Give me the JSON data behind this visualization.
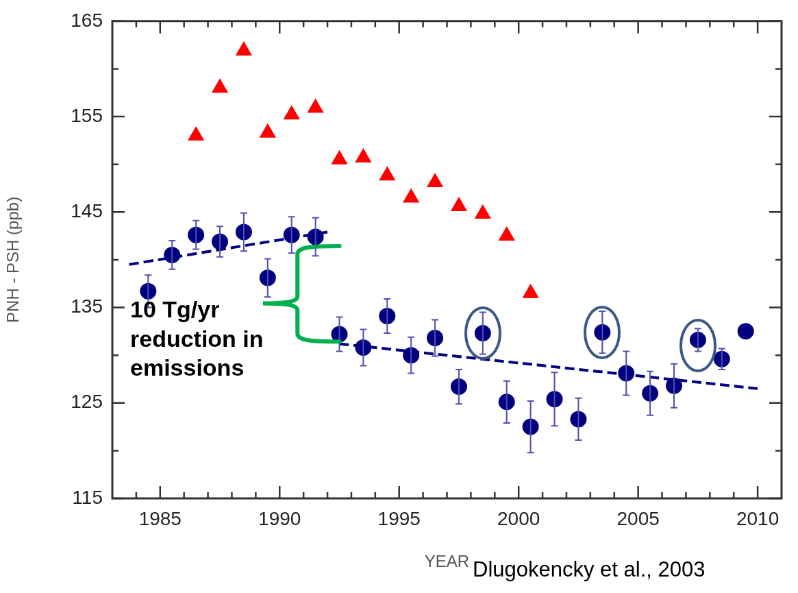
{
  "chart_data": {
    "type": "scatter",
    "xlabel": "YEAR",
    "ylabel": "PNH - PSH (ppb)",
    "xlim": [
      1983,
      2011
    ],
    "ylim": [
      115,
      165
    ],
    "xticks": [
      {
        "value": 1984,
        "label": null
      },
      1985,
      {
        "value": 1986,
        "label": null
      },
      {
        "value": 1987,
        "label": null
      },
      {
        "value": 1988,
        "label": null
      },
      {
        "value": 1989,
        "label": null
      },
      1990,
      {
        "value": 1991,
        "label": null
      },
      {
        "value": 1992,
        "label": null
      },
      {
        "value": 1993,
        "label": null
      },
      {
        "value": 1994,
        "label": null
      },
      1995,
      {
        "value": 1996,
        "label": null
      },
      {
        "value": 1997,
        "label": null
      },
      {
        "value": 1998,
        "label": null
      },
      {
        "value": 1999,
        "label": null
      },
      2000,
      {
        "value": 2001,
        "label": null
      },
      {
        "value": 2002,
        "label": null
      },
      {
        "value": 2003,
        "label": null
      },
      {
        "value": 2004,
        "label": null
      },
      2005,
      {
        "value": 2006,
        "label": null
      },
      {
        "value": 2007,
        "label": null
      },
      {
        "value": 2008,
        "label": null
      },
      {
        "value": 2009,
        "label": null
      },
      2010
    ],
    "yticks": [
      115,
      {
        "value": 120,
        "label": null
      },
      125,
      {
        "value": 130,
        "label": null
      },
      135,
      {
        "value": 140,
        "label": null
      },
      145,
      {
        "value": 150,
        "label": null
      },
      155,
      {
        "value": 160,
        "label": null
      },
      165
    ],
    "grid": false,
    "legend": false,
    "series": [
      {
        "marker": "triangle",
        "color": "#ff0000",
        "x": [
          1986.5,
          1987.5,
          1988.5,
          1989.5,
          1990.5,
          1991.5,
          1992.5,
          1993.5,
          1994.5,
          1995.5,
          1996.5,
          1997.5,
          1998.5,
          1999.5,
          2000.5
        ],
        "values": [
          153.0,
          158.0,
          161.9,
          153.3,
          155.2,
          155.9,
          150.5,
          150.7,
          148.8,
          146.5,
          148.1,
          145.6,
          144.8,
          142.5,
          136.5
        ]
      },
      {
        "marker": "circle",
        "color": "#000080",
        "x": [
          1984.5,
          1985.5,
          1986.5,
          1987.5,
          1988.5,
          1989.5,
          1990.5,
          1991.5,
          1992.5,
          1993.5,
          1994.5,
          1995.5,
          1996.5,
          1997.5,
          1998.5,
          1999.5,
          2000.5,
          2001.5,
          2002.5,
          2003.5,
          2004.5,
          2005.5,
          2006.5,
          2007.5,
          2008.5,
          2009.5
        ],
        "values": [
          136.7,
          140.5,
          142.6,
          141.9,
          142.9,
          138.1,
          142.6,
          142.4,
          132.2,
          130.8,
          134.1,
          130.0,
          131.8,
          126.7,
          132.3,
          125.1,
          122.5,
          125.4,
          123.3,
          132.4,
          128.1,
          126.0,
          126.8,
          131.6,
          129.6,
          132.5
        ],
        "errors": [
          1.7,
          1.5,
          1.5,
          1.6,
          2,
          2,
          1.9,
          2,
          1.8,
          1.9,
          1.8,
          1.9,
          1.9,
          1.8,
          2.2,
          2.2,
          2.7,
          2.8,
          2.2,
          2.2,
          2.3,
          2.3,
          2.3,
          1.2,
          1.1,
          null
        ]
      },
      {
        "type": "line",
        "marker": "none",
        "line_style": "dashed",
        "color": "#000080",
        "x": [
          1983.7,
          1992.0
        ],
        "values": [
          139.5,
          142.9
        ]
      },
      {
        "type": "line",
        "marker": "none",
        "line_style": "dashed",
        "color": "#000080",
        "x": [
          1992.5,
          2010.0
        ],
        "values": [
          131.2,
          126.5
        ]
      }
    ],
    "annotations": [
      "10 Tg/yr reduction in emissions",
      "Dlugokencky et al., 2003"
    ]
  }
}
